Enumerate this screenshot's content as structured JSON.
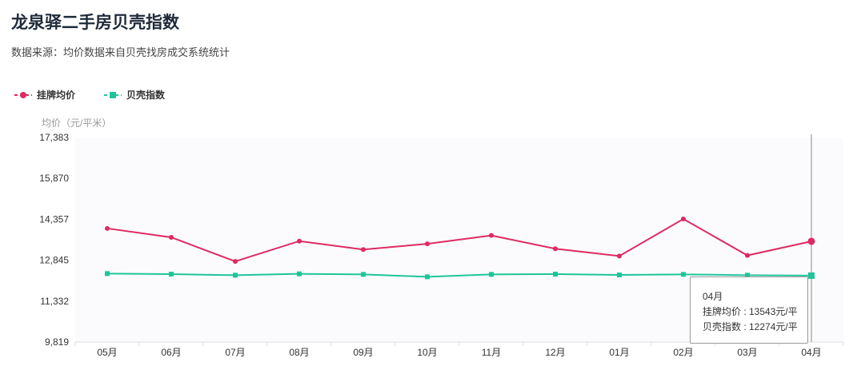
{
  "title": "龙泉驿二手房贝壳指数",
  "subtitle": "数据来源：均价数据来自贝壳找房成交系统统计",
  "legend": [
    {
      "label": "挂牌均价",
      "color": "#de2a62"
    },
    {
      "label": "贝壳指数",
      "color": "#1fc59a"
    }
  ],
  "tooltip": {
    "month": "04月",
    "line1": "挂牌均价 : 13543元/平",
    "line2": "贝壳指数 : 12274元/平"
  },
  "chart_data": {
    "type": "line",
    "title": "龙泉驿二手房贝壳指数",
    "ylabel": "均价（元/平米）",
    "xlabel": "",
    "categories": [
      "05月",
      "06月",
      "07月",
      "08月",
      "09月",
      "10月",
      "11月",
      "12月",
      "01月",
      "02月",
      "03月",
      "04月"
    ],
    "ylim": [
      9819,
      17383
    ],
    "yticks": [
      "9,819",
      "11,332",
      "12,845",
      "14,357",
      "15,870",
      "17,383"
    ],
    "series": [
      {
        "name": "挂牌均价",
        "color": "#de2a62",
        "marker": "circle",
        "values": [
          14020,
          13690,
          12800,
          13550,
          13240,
          13450,
          13760,
          13270,
          13000,
          14370,
          13020,
          13543
        ]
      },
      {
        "name": "贝壳指数",
        "color": "#1fc59a",
        "marker": "square",
        "values": [
          12350,
          12330,
          12290,
          12340,
          12320,
          12230,
          12320,
          12330,
          12300,
          12320,
          12290,
          12274
        ]
      }
    ],
    "highlight_index": 11,
    "grid": false
  }
}
